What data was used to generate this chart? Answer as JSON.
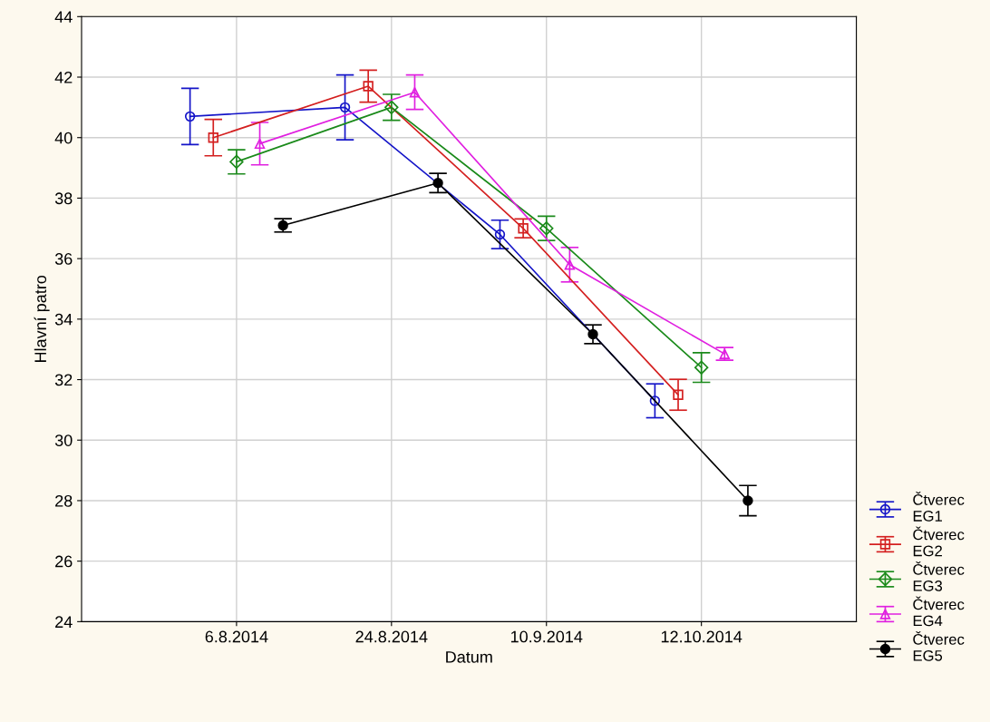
{
  "chart_data": {
    "type": "line",
    "xlabel": "Datum",
    "ylabel": "Hlavní patro",
    "categories": [
      "6.8.2014",
      "24.8.2014",
      "10.9.2014",
      "12.10.2014"
    ],
    "ylim": [
      24,
      44
    ],
    "yticks": [
      24,
      26,
      28,
      30,
      32,
      34,
      36,
      38,
      40,
      42,
      44
    ],
    "grid": true,
    "legend": "right",
    "line_style": "solid",
    "series": [
      {
        "name": "Čtverec EG1",
        "color": "#1414c8",
        "marker": "circle",
        "values": [
          40.7,
          41.0,
          36.8,
          31.3
        ],
        "errors": [
          0.93,
          1.07,
          0.47,
          0.56
        ]
      },
      {
        "name": "Čtverec EG2",
        "color": "#d42020",
        "marker": "square",
        "values": [
          40.0,
          41.7,
          37.0,
          31.5
        ],
        "errors": [
          0.6,
          0.53,
          0.31,
          0.51
        ]
      },
      {
        "name": "Čtverec EG3",
        "color": "#1a8a1a",
        "marker": "diamond",
        "values": [
          39.2,
          41.0,
          37.0,
          32.4
        ],
        "errors": [
          0.4,
          0.43,
          0.4,
          0.49
        ]
      },
      {
        "name": "Čtverec EG4",
        "color": "#e020e0",
        "marker": "triangle",
        "values": [
          39.8,
          41.5,
          35.8,
          32.85
        ],
        "errors": [
          0.7,
          0.57,
          0.57,
          0.21
        ]
      },
      {
        "name": "Čtverec EG5",
        "color": "#000000",
        "marker": "filled circle",
        "values": [
          37.1,
          38.5,
          33.5,
          28.0
        ],
        "errors": [
          0.22,
          0.32,
          0.31,
          0.5
        ]
      }
    ]
  }
}
